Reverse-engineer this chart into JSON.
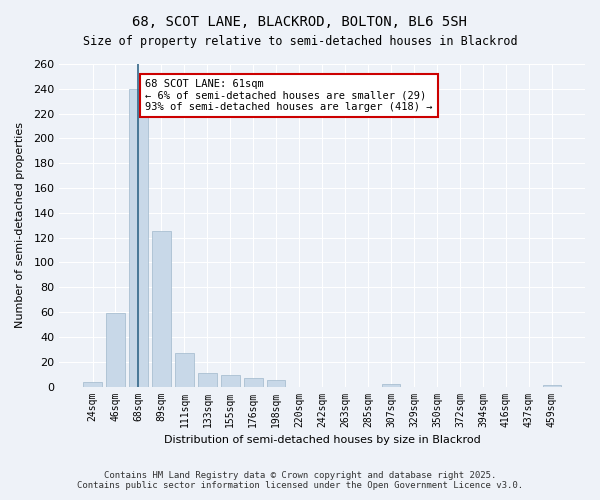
{
  "title1": "68, SCOT LANE, BLACKROD, BOLTON, BL6 5SH",
  "title2": "Size of property relative to semi-detached houses in Blackrod",
  "xlabel": "Distribution of semi-detached houses by size in Blackrod",
  "ylabel": "Number of semi-detached properties",
  "categories": [
    "24sqm",
    "46sqm",
    "68sqm",
    "89sqm",
    "111sqm",
    "133sqm",
    "155sqm",
    "176sqm",
    "198sqm",
    "220sqm",
    "242sqm",
    "263sqm",
    "285sqm",
    "307sqm",
    "329sqm",
    "350sqm",
    "372sqm",
    "394sqm",
    "416sqm",
    "437sqm",
    "459sqm"
  ],
  "values": [
    4,
    59,
    240,
    125,
    27,
    11,
    9,
    7,
    5,
    0,
    0,
    0,
    0,
    2,
    0,
    0,
    0,
    0,
    0,
    0,
    1
  ],
  "bar_color": "#c8d8e8",
  "bar_edge_color": "#a0b8cc",
  "highlight_bar_index": 2,
  "highlight_bar_color": "#c8d8e8",
  "highlight_bar_edge_color": "#5588aa",
  "annotation_box_text": "68 SCOT LANE: 61sqm\n← 6% of semi-detached houses are smaller (29)\n93% of semi-detached houses are larger (418) →",
  "annotation_box_color": "#ffffff",
  "annotation_box_edge_color": "#cc0000",
  "vertical_line_x": 2,
  "ylim": [
    0,
    260
  ],
  "yticks": [
    0,
    20,
    40,
    60,
    80,
    100,
    120,
    140,
    160,
    180,
    200,
    220,
    240,
    260
  ],
  "background_color": "#eef2f8",
  "grid_color": "#ffffff",
  "footer_line1": "Contains HM Land Registry data © Crown copyright and database right 2025.",
  "footer_line2": "Contains public sector information licensed under the Open Government Licence v3.0."
}
